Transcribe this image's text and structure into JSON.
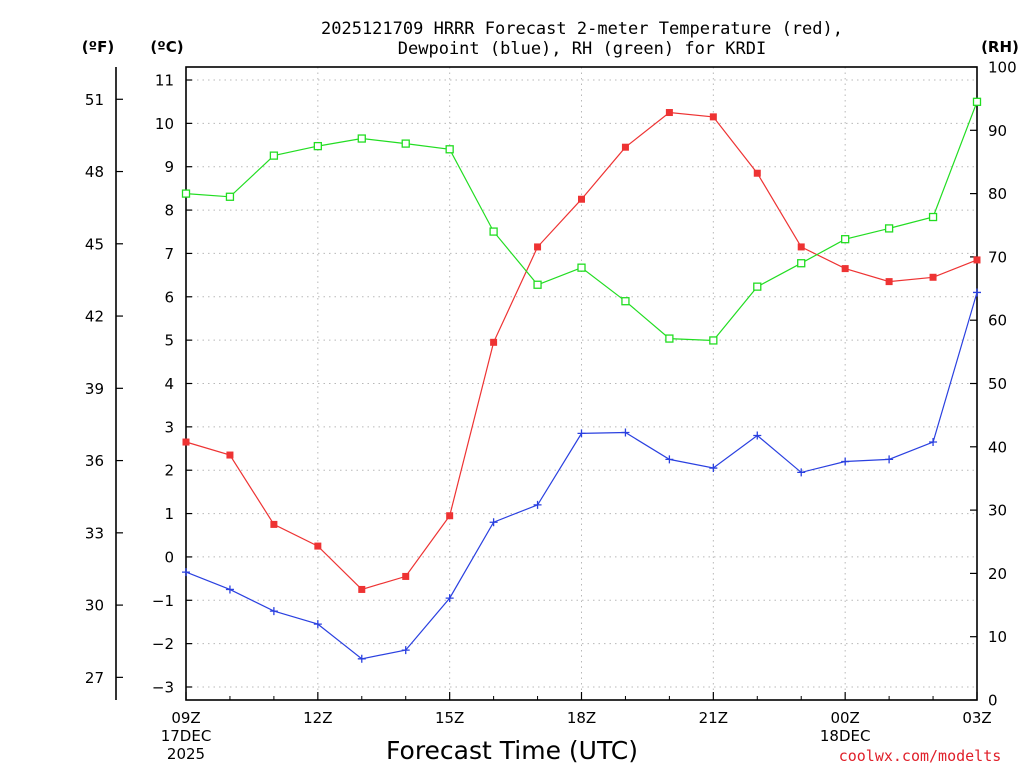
{
  "chart_data": {
    "type": "line",
    "title_line1": "2025121709 HRRR Forecast 2-meter Temperature (red),",
    "title_line2": "Dewpoint (blue), RH (green) for KRDI",
    "xlabel": "Forecast Time (UTC)",
    "credit": "coolwx.com/modelts",
    "units": {
      "fahrenheit": "(ºF)",
      "celsius": "(ºC)",
      "rh": "(RH)"
    },
    "x_hours": [
      0,
      1,
      2,
      3,
      4,
      5,
      6,
      7,
      8,
      9,
      10,
      11,
      12,
      13,
      14,
      15,
      16,
      17,
      18
    ],
    "x_ticks": [
      {
        "hour": 0,
        "label": "09Z",
        "sub1": "17DEC",
        "sub2": "2025"
      },
      {
        "hour": 3,
        "label": "12Z"
      },
      {
        "hour": 6,
        "label": "15Z"
      },
      {
        "hour": 9,
        "label": "18Z"
      },
      {
        "hour": 12,
        "label": "21Z"
      },
      {
        "hour": 15,
        "label": "00Z",
        "sub1": "18DEC"
      },
      {
        "hour": 18,
        "label": "03Z"
      }
    ],
    "x_minor_hours": [
      1,
      2,
      4,
      5,
      7,
      8,
      10,
      11,
      13,
      14,
      16,
      17
    ],
    "ylim_celsius": [
      -3.3,
      11.3
    ],
    "ylim_rh": [
      0,
      100
    ],
    "celsius_ticks": [
      -3,
      -2,
      -1,
      0,
      1,
      2,
      3,
      4,
      5,
      6,
      7,
      8,
      9,
      10,
      11
    ],
    "fahrenheit_ticks": [
      27,
      30,
      33,
      36,
      39,
      42,
      45,
      48,
      51
    ],
    "rh_ticks": [
      0,
      10,
      20,
      30,
      40,
      50,
      60,
      70,
      80,
      90,
      100
    ],
    "series": [
      {
        "name": "2-meter Temperature",
        "color": "#ee3333",
        "axis": "celsius",
        "marker": "filled-square",
        "values": [
          2.65,
          2.35,
          0.75,
          0.25,
          -0.75,
          -0.45,
          0.95,
          4.95,
          7.15,
          8.25,
          9.45,
          10.25,
          10.15,
          8.85,
          7.15,
          6.65,
          6.35,
          6.45,
          6.85
        ]
      },
      {
        "name": "Dewpoint",
        "color": "#2a40e0",
        "axis": "celsius",
        "marker": "plus",
        "values": [
          -0.35,
          -0.75,
          -1.25,
          -1.55,
          -2.35,
          -2.15,
          -0.95,
          0.8,
          1.2,
          2.85,
          2.87,
          2.25,
          2.05,
          2.8,
          1.95,
          2.2,
          2.25,
          2.65,
          6.1
        ]
      },
      {
        "name": "RH",
        "color": "#22dd22",
        "axis": "rh",
        "marker": "open-square",
        "values": [
          80.0,
          79.5,
          86.0,
          87.5,
          88.7,
          87.9,
          87.0,
          74.0,
          65.6,
          68.3,
          63.0,
          57.1,
          56.8,
          65.3,
          69.0,
          72.8,
          74.5,
          76.3,
          94.5
        ]
      }
    ]
  }
}
